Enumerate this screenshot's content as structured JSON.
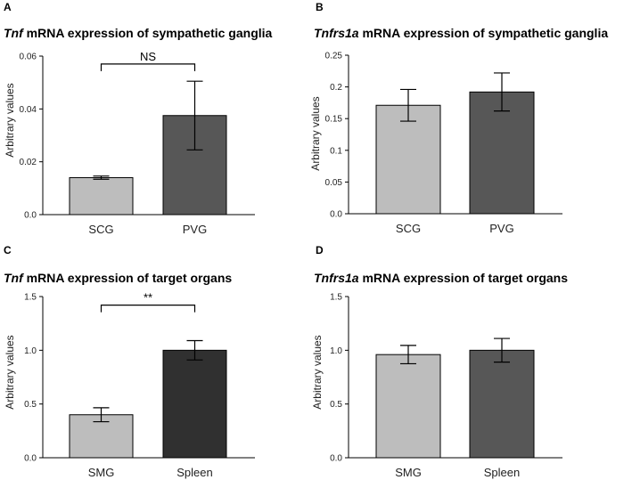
{
  "chart_data": [
    {
      "panel": "A",
      "type": "bar",
      "title_gene": "Tnf",
      "title_rest": " mRNA expression of sympathetic ganglia",
      "ylabel": "Arbitrary values",
      "ylim": [
        0,
        0.06
      ],
      "yticks": [
        "0.0",
        "0.02",
        "0.04",
        "0.06"
      ],
      "tick_values": [
        0,
        0.02,
        0.04,
        0.06
      ],
      "categories": [
        "SCG",
        "PVG"
      ],
      "values": [
        0.014,
        0.0375
      ],
      "errors": [
        0.0006,
        0.013
      ],
      "colors": [
        "#bdbdbd",
        "#575757"
      ],
      "significance": {
        "label": "NS",
        "y": 0.057
      }
    },
    {
      "panel": "B",
      "type": "bar",
      "title_gene": "Tnfrs1a",
      "title_rest": " mRNA expression of sympathetic ganglia",
      "ylabel": "Arbitrary values",
      "ylim": [
        0,
        0.25
      ],
      "yticks": [
        "0.0",
        "0.05",
        "0.1",
        "0.15",
        "0.2",
        "0.25"
      ],
      "tick_values": [
        0,
        0.05,
        0.1,
        0.15,
        0.2,
        0.25
      ],
      "categories": [
        "SCG",
        "PVG"
      ],
      "values": [
        0.171,
        0.192
      ],
      "errors": [
        0.025,
        0.03
      ],
      "colors": [
        "#bdbdbd",
        "#575757"
      ]
    },
    {
      "panel": "C",
      "type": "bar",
      "title_gene": "Tnf",
      "title_rest": " mRNA expression of target organs",
      "ylabel": "Arbitrary values",
      "ylim": [
        0,
        1.5
      ],
      "yticks": [
        "0.0",
        "0.5",
        "1.0",
        "1.5"
      ],
      "tick_values": [
        0,
        0.5,
        1.0,
        1.5
      ],
      "categories": [
        "SMG",
        "Spleen"
      ],
      "values": [
        0.4,
        1.0
      ],
      "errors": [
        0.065,
        0.09
      ],
      "colors": [
        "#bdbdbd",
        "#303030"
      ],
      "significance": {
        "label": "**",
        "y": 1.42
      }
    },
    {
      "panel": "D",
      "type": "bar",
      "title_gene": "Tnfrs1a",
      "title_rest": " mRNA expression of target organs",
      "ylabel": "Arbitrary values",
      "ylim": [
        0,
        1.5
      ],
      "yticks": [
        "0.0",
        "0.5",
        "1.0",
        "1.5"
      ],
      "tick_values": [
        0,
        0.5,
        1.0,
        1.5
      ],
      "categories": [
        "SMG",
        "Spleen"
      ],
      "values": [
        0.96,
        1.0
      ],
      "errors": [
        0.085,
        0.11
      ],
      "colors": [
        "#bdbdbd",
        "#575757"
      ]
    }
  ]
}
